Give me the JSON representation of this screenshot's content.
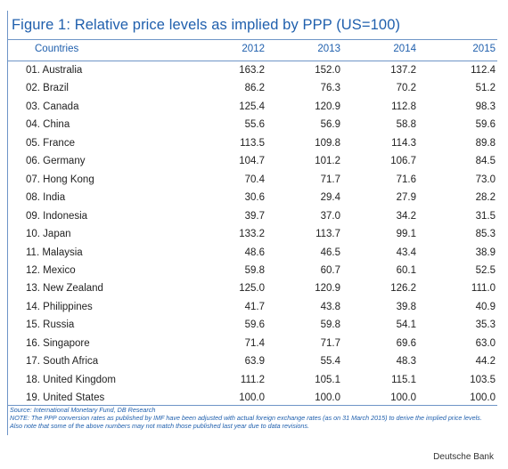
{
  "title": "Figure 1: Relative price levels as implied by PPP (US=100)",
  "columns": {
    "country": "Countries",
    "years": [
      "2012",
      "2013",
      "2014",
      "2015"
    ]
  },
  "rows": [
    {
      "name": "01. Australia",
      "values": [
        "163.2",
        "152.0",
        "137.2",
        "112.4"
      ]
    },
    {
      "name": "02. Brazil",
      "values": [
        "86.2",
        "76.3",
        "70.2",
        "51.2"
      ]
    },
    {
      "name": "03. Canada",
      "values": [
        "125.4",
        "120.9",
        "112.8",
        "98.3"
      ]
    },
    {
      "name": "04. China",
      "values": [
        "55.6",
        "56.9",
        "58.8",
        "59.6"
      ]
    },
    {
      "name": "05. France",
      "values": [
        "113.5",
        "109.8",
        "114.3",
        "89.8"
      ]
    },
    {
      "name": "06. Germany",
      "values": [
        "104.7",
        "101.2",
        "106.7",
        "84.5"
      ]
    },
    {
      "name": "07. Hong Kong",
      "values": [
        "70.4",
        "71.7",
        "71.6",
        "73.0"
      ]
    },
    {
      "name": "08. India",
      "values": [
        "30.6",
        "29.4",
        "27.9",
        "28.2"
      ]
    },
    {
      "name": "09. Indonesia",
      "values": [
        "39.7",
        "37.0",
        "34.2",
        "31.5"
      ]
    },
    {
      "name": "10. Japan",
      "values": [
        "133.2",
        "113.7",
        "99.1",
        "85.3"
      ]
    },
    {
      "name": "11. Malaysia",
      "values": [
        "48.6",
        "46.5",
        "43.4",
        "38.9"
      ]
    },
    {
      "name": "12. Mexico",
      "values": [
        "59.8",
        "60.7",
        "60.1",
        "52.5"
      ]
    },
    {
      "name": "13. New Zealand",
      "values": [
        "125.0",
        "120.9",
        "126.2",
        "111.0"
      ]
    },
    {
      "name": "14. Philippines",
      "values": [
        "41.7",
        "43.8",
        "39.8",
        "40.9"
      ]
    },
    {
      "name": "15. Russia",
      "values": [
        "59.6",
        "59.8",
        "54.1",
        "35.3"
      ]
    },
    {
      "name": "16. Singapore",
      "values": [
        "71.4",
        "71.7",
        "69.6",
        "63.0"
      ]
    },
    {
      "name": "17. South Africa",
      "values": [
        "63.9",
        "55.4",
        "48.3",
        "44.2"
      ]
    },
    {
      "name": "18. United Kingdom",
      "values": [
        "111.2",
        "105.1",
        "115.1",
        "103.5"
      ]
    },
    {
      "name": "19. United States",
      "values": [
        "100.0",
        "100.0",
        "100.0",
        "100.0"
      ]
    }
  ],
  "source": "Source: International Monetary Fund, DB Research",
  "note": "NOTE: The PPP conversion rates as published by IMF have been adjusted with actual foreign exchange rates (as on 31 March 2015) to derive the implied price levels. Also note that some of the above numbers may not match those published last year due to data revisions.",
  "credit": "Deutsche Bank",
  "colors": {
    "accent": "#1f5fad",
    "rule": "#6e95c7"
  }
}
